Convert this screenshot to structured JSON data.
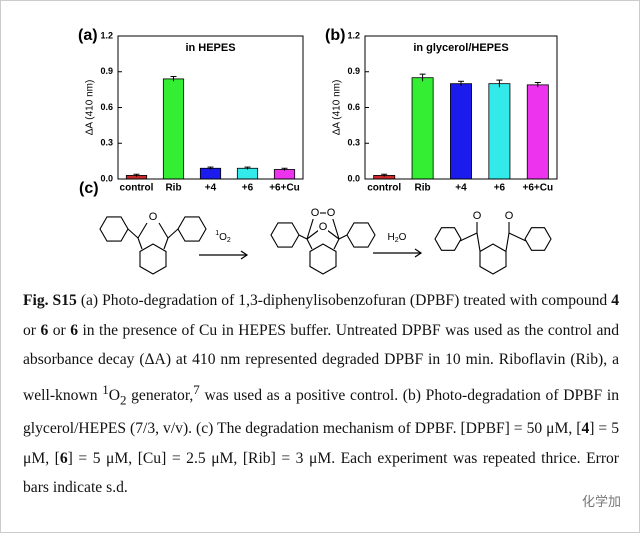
{
  "chart_data": [
    {
      "type": "bar",
      "panel": "(a)",
      "title": "in HEPES",
      "y_label": "ΔA (410 nm)",
      "categories": [
        "control",
        "Rib",
        "+4",
        "+6",
        "+6+Cu"
      ],
      "values": [
        0.03,
        0.84,
        0.09,
        0.09,
        0.08
      ],
      "errors": [
        0.01,
        0.02,
        0.01,
        0.01,
        0.01
      ],
      "colors": [
        "#cc2a2a",
        "#33ee33",
        "#1b1bee",
        "#33eaea",
        "#ee33ee"
      ],
      "ylim": [
        0,
        1.2
      ],
      "yticks": [
        {
          "value": 0,
          "label": "0.0"
        },
        0.3,
        0.6,
        0.9,
        1.2
      ]
    },
    {
      "type": "bar",
      "panel": "(b)",
      "title": "in glycerol/HEPES",
      "y_label": "ΔA (410 nm)",
      "categories": [
        "control",
        "Rib",
        "+4",
        "+6",
        "+6+Cu"
      ],
      "values": [
        0.03,
        0.85,
        0.8,
        0.8,
        0.79
      ],
      "errors": [
        0.01,
        0.03,
        0.02,
        0.03,
        0.02
      ],
      "colors": [
        "#cc2a2a",
        "#33ee33",
        "#1b1bee",
        "#33eaea",
        "#ee33ee"
      ],
      "ylim": [
        0,
        1.2
      ],
      "yticks": [
        {
          "value": 0,
          "label": "0.0"
        },
        0.3,
        0.6,
        0.9,
        1.2
      ]
    }
  ],
  "scheme": {
    "panel": "(c)",
    "atom": "O",
    "reagents": [
      [
        "1",
        "O",
        "2"
      ],
      [
        "H",
        "2",
        "O"
      ]
    ]
  },
  "caption": {
    "segments": [
      "Fig. S15",
      " (a) Photo-degradation of 1,3-diphenylisobenzofuran (DPBF) treated with compound ",
      "4",
      " or ",
      "6",
      " or ",
      "6",
      " in the presence of Cu in HEPES buffer. Untreated DPBF was used as the control and absorbance decay (ΔA) at 410 nm represented degraded DPBF in 10 min. Riboflavin (Rib), a well-known ",
      "1",
      "O",
      "2",
      " generator,",
      "7",
      " was used as a positive control. (b) Photo-degradation of DPBF in glycerol/HEPES (7/3, v/v). (c) The degradation mechanism of DPBF. [DPBF] = 50 μM, [",
      "4",
      "] = 5 μM, [",
      "6",
      "] = 5 μM, [Cu] = 2.5 μM, [Rib] = 3 μM. Each experiment was repeated thrice. Error bars indicate s.d."
    ]
  },
  "watermark": "化学加"
}
